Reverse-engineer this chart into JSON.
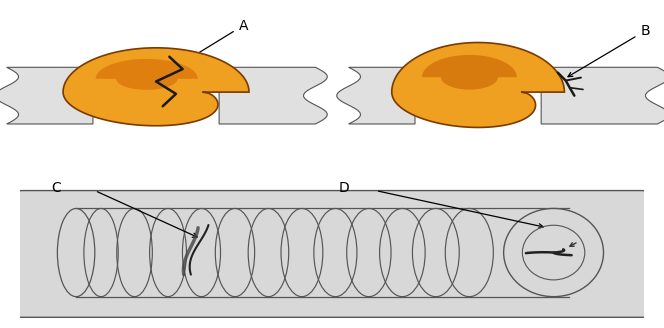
{
  "bg_color": "#ffffff",
  "plate_color_light": "#e0e0e0",
  "plate_color_mid": "#cccccc",
  "plate_color_dark": "#b0b0b0",
  "weld_orange_light": "#f0a020",
  "weld_orange_dark": "#b05000",
  "weld_edge": "#7a3a00",
  "crack_color": "#1a1a1a",
  "edge_color": "#555555",
  "label_A": "A",
  "label_B": "B",
  "label_C": "C",
  "label_D": "D",
  "label_fontsize": 10
}
